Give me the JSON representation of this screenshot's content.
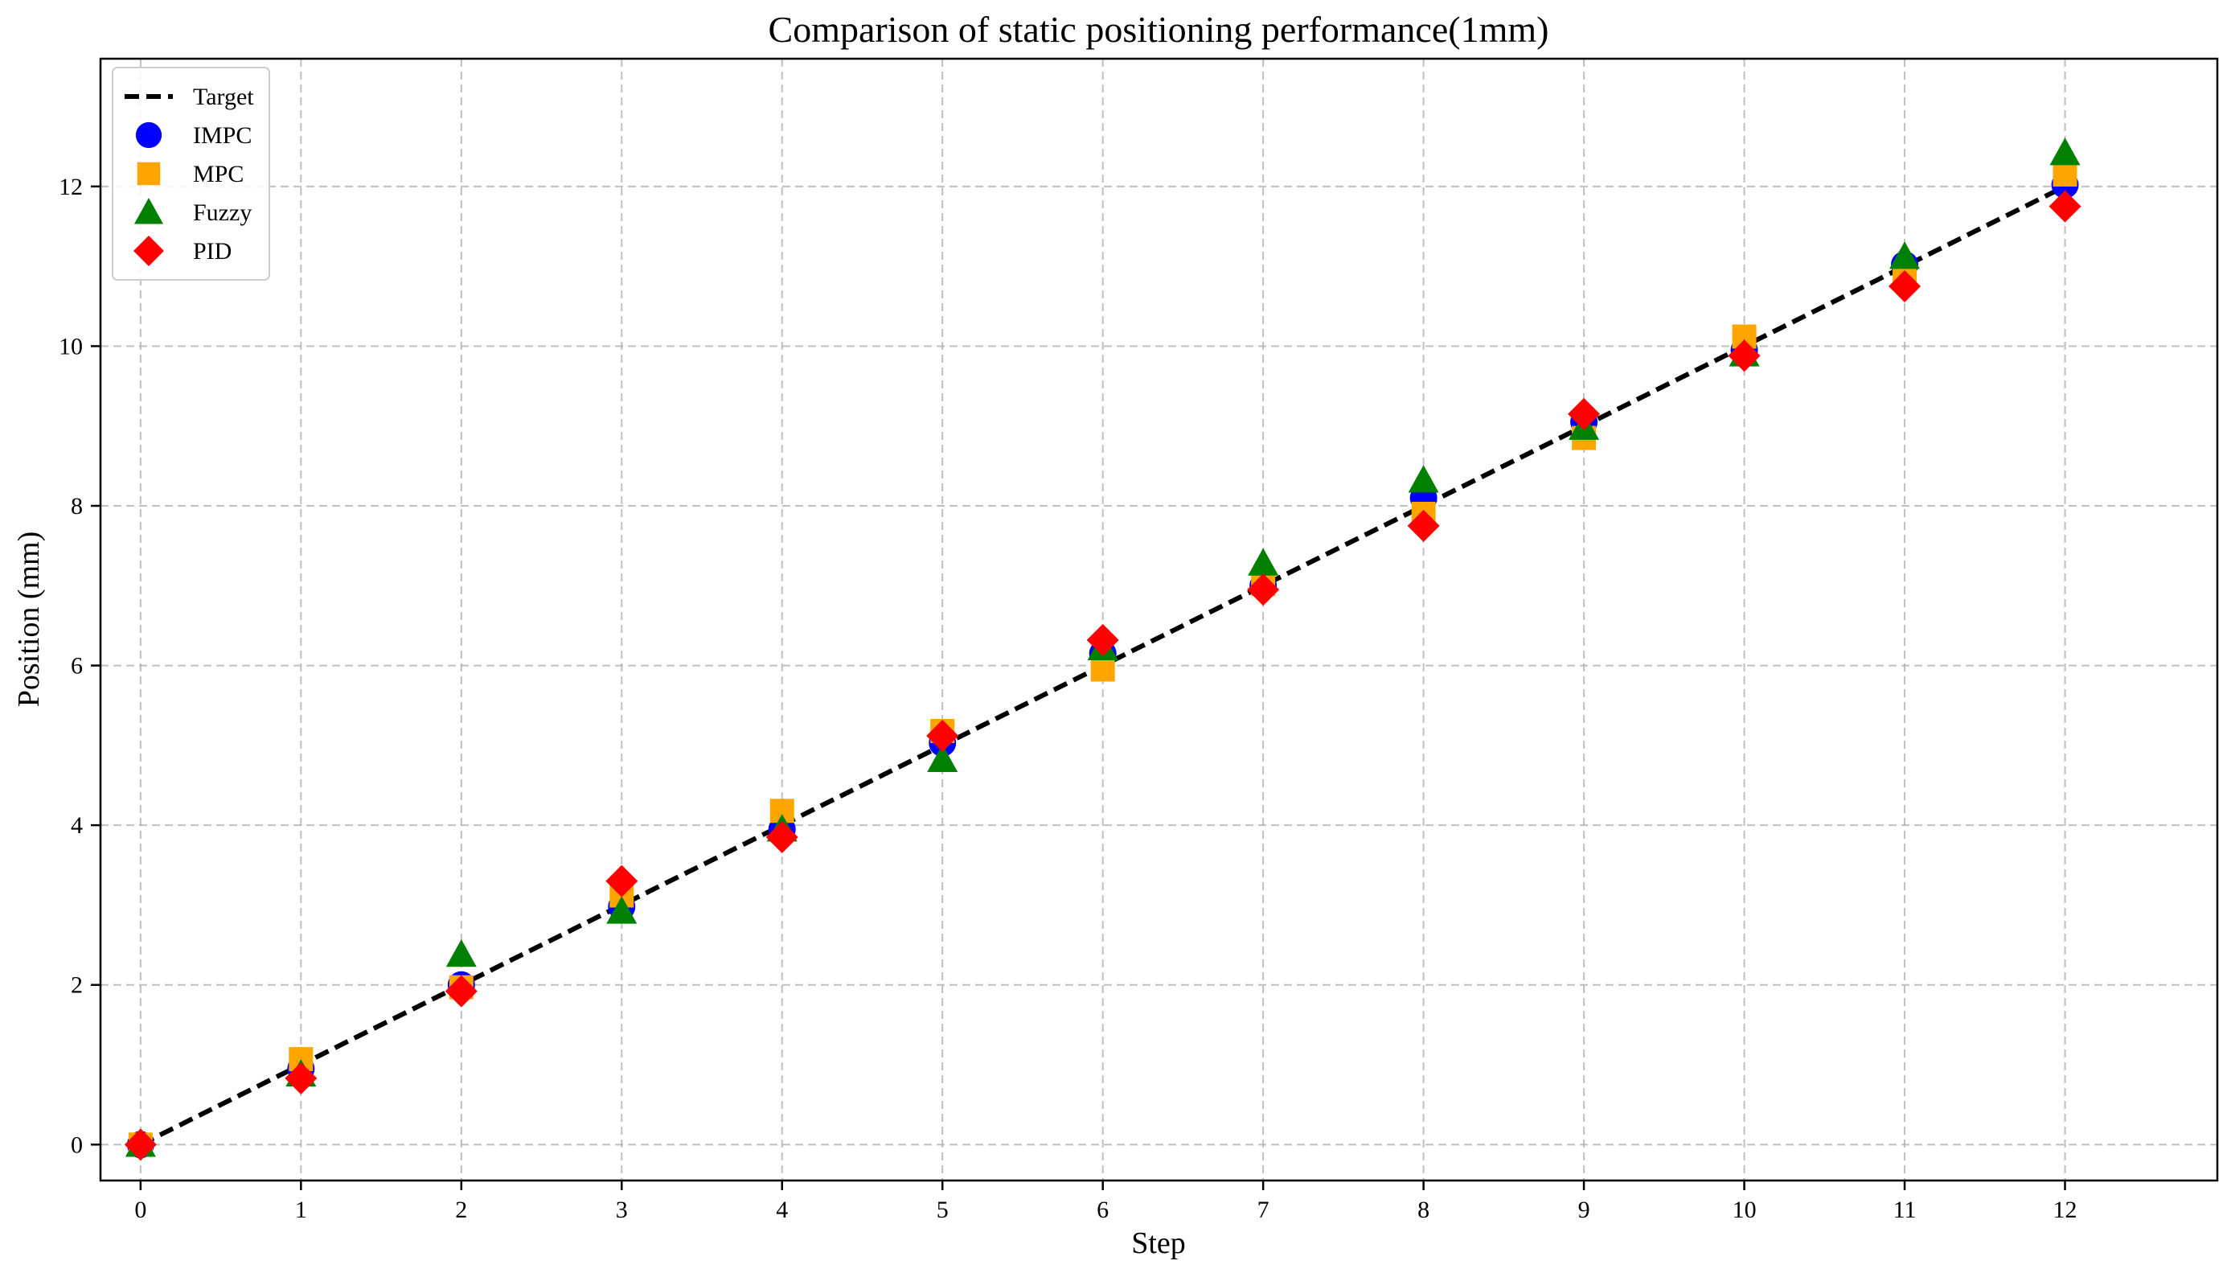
{
  "chart_data": {
    "type": "scatter",
    "title": "Comparison of static positioning performance(1mm)",
    "xlabel": "Step",
    "ylabel": "Position (mm)",
    "xlim": [
      -0.25,
      12.95
    ],
    "ylim": [
      -0.45,
      13.6
    ],
    "x_ticks": [
      0,
      1,
      2,
      3,
      4,
      5,
      6,
      7,
      8,
      9,
      10,
      11,
      12
    ],
    "y_ticks": [
      0,
      2,
      4,
      6,
      8,
      10,
      12
    ],
    "grid": true,
    "legend_position": "top-left",
    "x": [
      0,
      1,
      2,
      3,
      4,
      5,
      6,
      7,
      8,
      9,
      10,
      11,
      12
    ],
    "series": [
      {
        "name": "Target",
        "marker": "line",
        "color": "#000000",
        "values": [
          0,
          1,
          2,
          3,
          4,
          5,
          6,
          7,
          8,
          9,
          10,
          11,
          12
        ]
      },
      {
        "name": "IMPC",
        "marker": "circle",
        "color": "#0000ff",
        "values": [
          0.0,
          0.95,
          2.0,
          2.98,
          3.95,
          5.03,
          6.15,
          7.0,
          8.1,
          9.05,
          9.95,
          11.02,
          12.02
        ]
      },
      {
        "name": "MPC",
        "marker": "square",
        "color": "#ffa500",
        "values": [
          0.0,
          1.07,
          1.97,
          3.12,
          4.18,
          5.18,
          5.95,
          7.02,
          7.9,
          8.85,
          10.12,
          10.88,
          12.15
        ]
      },
      {
        "name": "Fuzzy",
        "marker": "triangle",
        "color": "#008000",
        "values": [
          0.0,
          0.88,
          2.38,
          2.92,
          3.95,
          4.82,
          6.22,
          7.28,
          8.32,
          8.98,
          9.9,
          11.12,
          12.42
        ]
      },
      {
        "name": "PID",
        "marker": "diamond",
        "color": "#ff0000",
        "values": [
          0.0,
          0.83,
          1.92,
          3.3,
          3.85,
          5.12,
          6.32,
          6.95,
          7.75,
          9.15,
          9.88,
          10.75,
          11.75
        ]
      }
    ]
  }
}
